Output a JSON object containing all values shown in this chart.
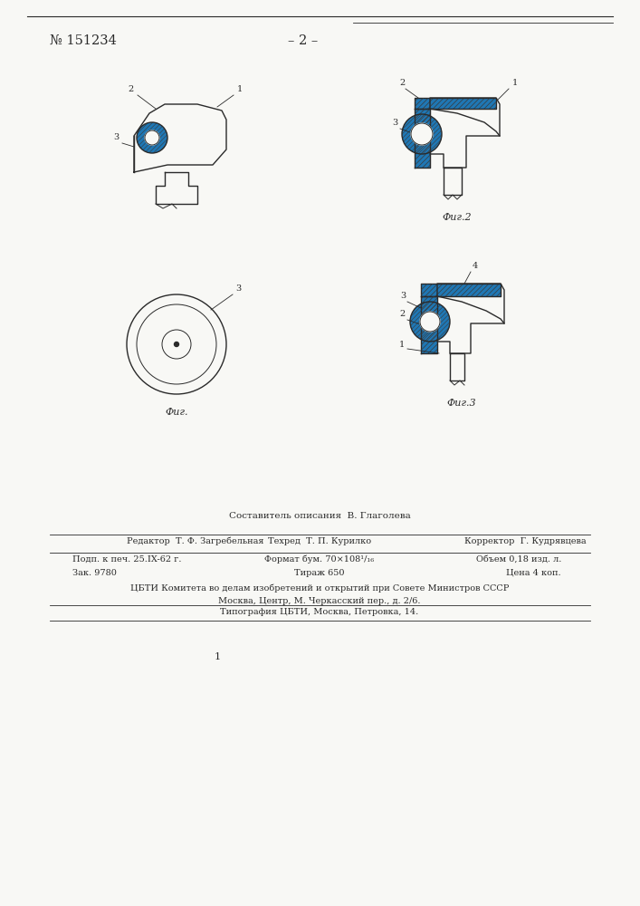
{
  "bg_color": "#f8f8f5",
  "patent_number": "№ 151234",
  "page_number": "– 2 –",
  "footer_composer": "Составитель описания  В. Глаголева",
  "footer_editor": "Редактор  Т. Ф. Загребельная",
  "footer_techred": "Техред  Т. П. Курилко",
  "footer_corrector": "Корректор  Г. Кудрявцева",
  "footer_podp": "Подп. к печ. 25.IX-62 г.",
  "footer_format": "Формат бум. 70×108¹/₁₆",
  "footer_obem": "Объем 0,18 изд. л.",
  "footer_zak": "Зак. 9780",
  "footer_tirazh": "Тираж 650",
  "footer_cena": "Цена 4 коп.",
  "footer_cbti1": "ЦБТИ Комитета во делам изобретений и открытий при Совете Министров СССР",
  "footer_cbti2": "Москва, Центр, М. Черкасский пер., д. 2/6.",
  "footer_tipograf": "Типография ЦБТИ, Москва, Петровка, 14.",
  "page_num_bottom": "1",
  "fig1_label": "Фиг.",
  "fig2_label": "Фиг.2",
  "fig3_label": "Фиг.3",
  "line_color": "#2a2a2a",
  "hatch_color": "#3a3a3a"
}
